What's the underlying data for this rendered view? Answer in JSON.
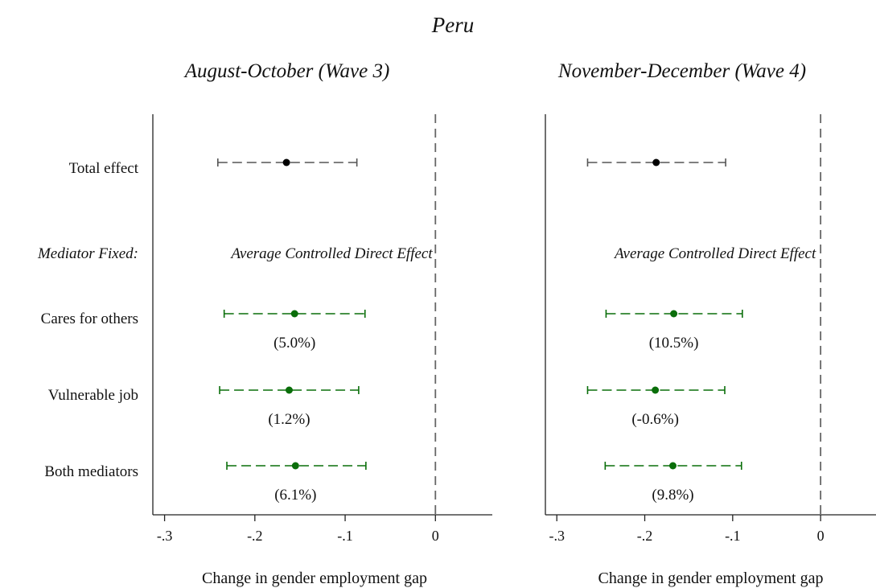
{
  "figure_title": "Peru",
  "row_labels": {
    "total": "Total effect",
    "mediator_fixed": "Mediator Fixed:",
    "cares": "Cares for others",
    "vulnerable": "Vulnerable job",
    "both": "Both mediators"
  },
  "colors": {
    "total": "#000000",
    "total_ci": "#555555",
    "mediator": "#0a6e0a",
    "axis": "#222222",
    "zero_line": "#666666"
  },
  "chart_data": [
    {
      "type": "scatter",
      "title": "August-October (Wave 3)",
      "xlabel": "Change in gender employment gap",
      "section_label": "Average Controlled Direct Effect",
      "xlim": [
        -0.313,
        0.063
      ],
      "xticks": [
        -0.3,
        -0.2,
        -0.1,
        0
      ],
      "xtick_labels": [
        "-.3",
        "-.2",
        "-.1",
        "0"
      ],
      "reference_line": 0,
      "series": [
        {
          "key": "total",
          "estimate": -0.165,
          "ci": [
            -0.241,
            -0.087
          ],
          "pct_label": ""
        },
        {
          "key": "cares",
          "estimate": -0.156,
          "ci": [
            -0.234,
            -0.078
          ],
          "pct_label": "(5.0%)"
        },
        {
          "key": "vulnerable",
          "estimate": -0.162,
          "ci": [
            -0.239,
            -0.085
          ],
          "pct_label": "(1.2%)"
        },
        {
          "key": "both",
          "estimate": -0.155,
          "ci": [
            -0.231,
            -0.077
          ],
          "pct_label": "(6.1%)"
        }
      ]
    },
    {
      "type": "scatter",
      "title": "November-December (Wave 4)",
      "xlabel": "Change in gender employment gap",
      "section_label": "Average Controlled Direct Effect",
      "xlim": [
        -0.313,
        0.063
      ],
      "xticks": [
        -0.3,
        -0.2,
        -0.1,
        0
      ],
      "xtick_labels": [
        "-.3",
        "-.2",
        "-.1",
        "0"
      ],
      "reference_line": 0,
      "series": [
        {
          "key": "total",
          "estimate": -0.187,
          "ci": [
            -0.265,
            -0.108
          ],
          "pct_label": ""
        },
        {
          "key": "cares",
          "estimate": -0.167,
          "ci": [
            -0.244,
            -0.089
          ],
          "pct_label": "(10.5%)"
        },
        {
          "key": "vulnerable",
          "estimate": -0.188,
          "ci": [
            -0.265,
            -0.109
          ],
          "pct_label": "(-0.6%)"
        },
        {
          "key": "both",
          "estimate": -0.168,
          "ci": [
            -0.245,
            -0.09
          ],
          "pct_label": "(9.8%)"
        }
      ]
    }
  ]
}
